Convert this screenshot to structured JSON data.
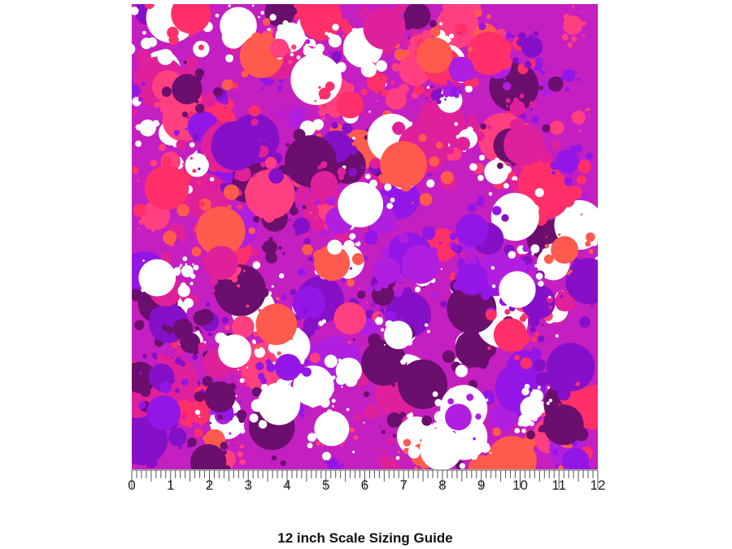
{
  "ruler": {
    "labels": [
      0,
      1,
      2,
      3,
      4,
      5,
      6,
      7,
      8,
      9,
      10,
      11,
      12
    ]
  },
  "caption": "12 inch Scale Sizing Guide"
}
